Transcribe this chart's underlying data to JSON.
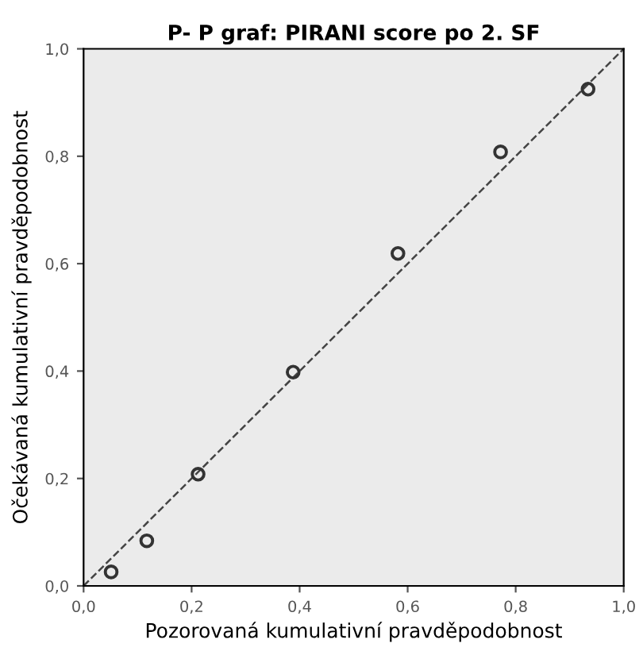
{
  "chart_data": {
    "type": "scatter",
    "title": "P- P graf: PIRANI score po 2. SF",
    "xlabel": "Pozorovaná kumulativní pravděpodobnost",
    "ylabel": "Očekávaná kumulativní pravděpodobnost",
    "series": [
      {
        "color": "#333333",
        "marker": "circle",
        "x": [
          0.051,
          0.117,
          0.212,
          0.388,
          0.582,
          0.772,
          0.934
        ],
        "values": [
          0.026,
          0.084,
          0.208,
          0.398,
          0.619,
          0.808,
          0.925
        ]
      },
      {
        "type": "line",
        "color": "#444444",
        "line_style": "dashed",
        "marker": "none",
        "x": [
          0,
          1
        ],
        "values": [
          0,
          1
        ]
      }
    ],
    "xlim": [
      0,
      1
    ],
    "ylim": [
      0,
      1
    ],
    "xticks": [
      {
        "value": 0,
        "label": "0,0"
      },
      {
        "value": 0.2,
        "label": "0,2"
      },
      {
        "value": 0.4,
        "label": "0,4"
      },
      {
        "value": 0.6,
        "label": "0,6"
      },
      {
        "value": 0.8,
        "label": "0,8"
      },
      {
        "value": 1,
        "label": "1,0"
      }
    ],
    "yticks": [
      {
        "value": 0,
        "label": "0,0"
      },
      {
        "value": 0.2,
        "label": "0,2"
      },
      {
        "value": 0.4,
        "label": "0,4"
      },
      {
        "value": 0.6,
        "label": "0,6"
      },
      {
        "value": 0.8,
        "label": "0,8"
      },
      {
        "value": 1,
        "label": "1,0"
      }
    ],
    "grid": false,
    "legend": false
  }
}
